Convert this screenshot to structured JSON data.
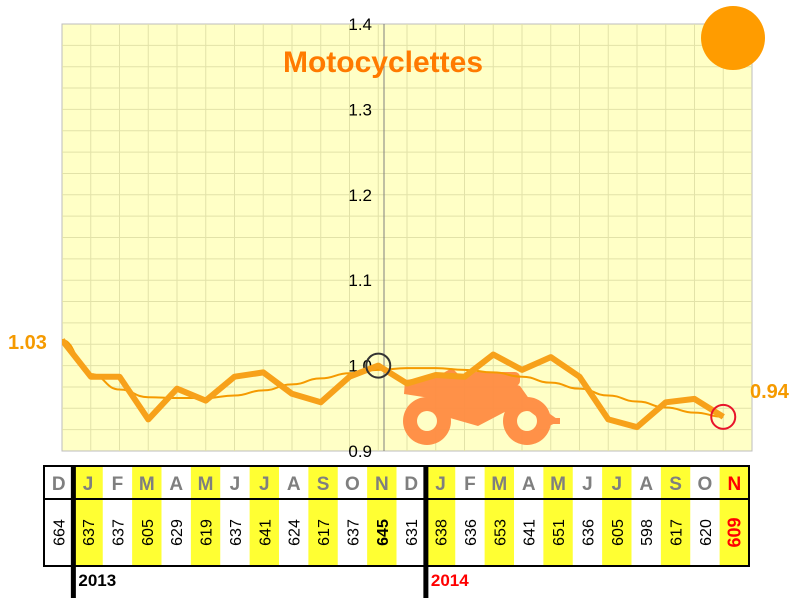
{
  "chart_data": {
    "type": "line",
    "title": "Motocyclettes",
    "y_ticks": [
      "0.9",
      "1.0",
      "1.1",
      "1.2",
      "1.3",
      "1.4"
    ],
    "ylim": [
      0.9,
      1.4
    ],
    "months": [
      "D",
      "J",
      "F",
      "M",
      "A",
      "M",
      "J",
      "J",
      "A",
      "S",
      "O",
      "N",
      "D",
      "J",
      "F",
      "M",
      "A",
      "M",
      "J",
      "J",
      "A",
      "S",
      "O",
      "N"
    ],
    "counts": [
      "664",
      "637",
      "637",
      "605",
      "629",
      "619",
      "637",
      "641",
      "624",
      "617",
      "637",
      "645",
      "631",
      "638",
      "636",
      "653",
      "641",
      "651",
      "636",
      "605",
      "598",
      "617",
      "620",
      "609"
    ],
    "years": [
      "2013",
      "2014"
    ],
    "series": [
      {
        "values": [
          1.03,
          0.987,
          0.987,
          0.937,
          0.973,
          0.959,
          0.987,
          0.992,
          0.967,
          0.957,
          0.987,
          1.0,
          0.979,
          0.989,
          0.987,
          1.013,
          0.995,
          1.01,
          0.987,
          0.937,
          0.928,
          0.957,
          0.961,
          0.94
        ]
      },
      {
        "values": [
          1.03,
          0.99,
          0.972,
          0.963,
          0.962,
          0.962,
          0.965,
          0.971,
          0.978,
          0.985,
          0.991,
          0.995,
          0.997,
          0.997,
          0.995,
          0.992,
          0.987,
          0.98,
          0.973,
          0.965,
          0.958,
          0.951,
          0.945,
          0.94
        ]
      }
    ],
    "start_label": "1.03",
    "end_label": "0.94",
    "grid": true,
    "colors": {
      "plot_bg": "#ffffc6",
      "line": "#f7a11a",
      "trend": "#f59a00",
      "title": "#ff7a00",
      "highlight": "#ffff33"
    }
  }
}
